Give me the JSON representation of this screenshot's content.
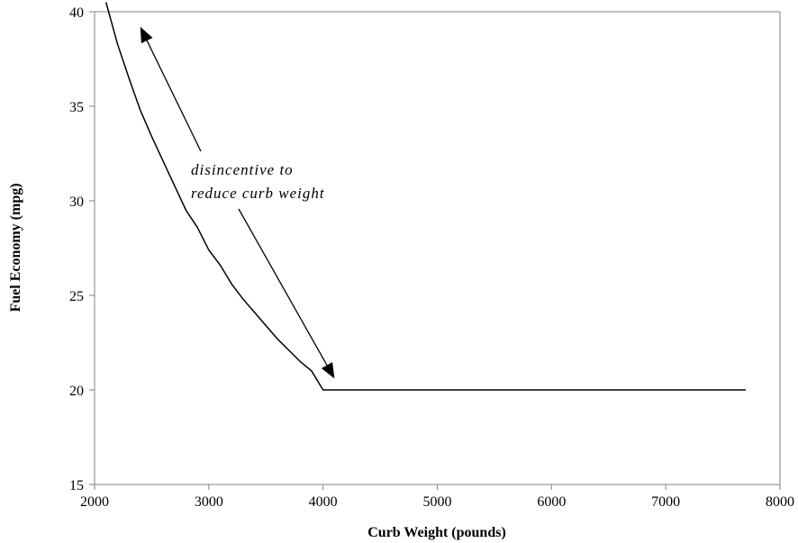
{
  "chart_data": {
    "type": "line",
    "title": "",
    "xlabel": "Curb Weight (pounds)",
    "ylabel": "Fuel Economy (mpg)",
    "xlim": [
      2000,
      8000
    ],
    "ylim": [
      15,
      40
    ],
    "x_ticks": [
      2000,
      3000,
      4000,
      5000,
      6000,
      7000,
      8000
    ],
    "y_ticks": [
      15,
      20,
      25,
      30,
      35,
      40
    ],
    "grid": false,
    "legend": "none",
    "series": [
      {
        "points": [
          [
            2100,
            40.5
          ],
          [
            2200,
            38.3
          ],
          [
            2300,
            36.5
          ],
          [
            2400,
            34.8
          ],
          [
            2500,
            33.4
          ],
          [
            2600,
            32.1
          ],
          [
            2700,
            30.8
          ],
          [
            2800,
            29.5
          ],
          [
            2900,
            28.6
          ],
          [
            3000,
            27.4
          ],
          [
            3100,
            26.6
          ],
          [
            3200,
            25.6
          ],
          [
            3300,
            24.8
          ],
          [
            3400,
            24.1
          ],
          [
            3500,
            23.4
          ],
          [
            3600,
            22.7
          ],
          [
            3700,
            22.1
          ],
          [
            3800,
            21.5
          ],
          [
            3900,
            21.0
          ],
          [
            4000,
            20.0
          ],
          [
            7700,
            20.0
          ]
        ]
      }
    ],
    "annotation": {
      "lines": [
        "disincentive to",
        "reduce curb weight"
      ],
      "arrow_up_to": [
        2400,
        39.2
      ],
      "arrow_down_to": [
        4100,
        20.6
      ]
    },
    "colors": {
      "line": "#000000",
      "axis": "#808080",
      "background": "#ffffff"
    }
  }
}
